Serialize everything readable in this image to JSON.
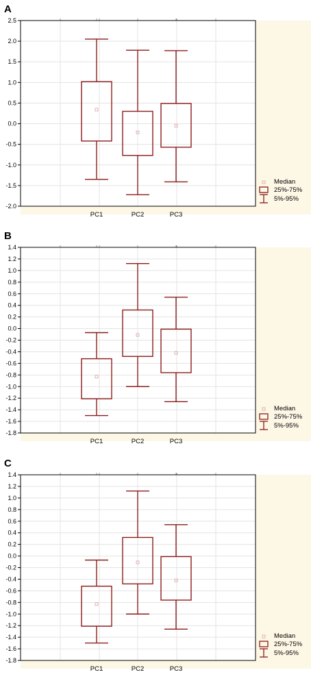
{
  "chart_data": [
    {
      "type": "box",
      "panel_label": "A",
      "categories": [
        "PC1",
        "PC2",
        "PC3"
      ],
      "ylim": [
        -2.0,
        2.5
      ],
      "yticks": [
        -2.0,
        -1.5,
        -1.0,
        -0.5,
        0.0,
        0.5,
        1.0,
        1.5,
        2.0,
        2.5
      ],
      "tick_decimals": 1,
      "grid": true,
      "boxes": [
        {
          "category": "PC1",
          "p5": -1.35,
          "q1": -0.42,
          "median": 0.34,
          "q3": 1.02,
          "p95": 2.05
        },
        {
          "category": "PC2",
          "p5": -1.72,
          "q1": -0.77,
          "median": -0.21,
          "q3": 0.3,
          "p95": 1.78
        },
        {
          "category": "PC3",
          "p5": -1.41,
          "q1": -0.57,
          "median": -0.05,
          "q3": 0.49,
          "p95": 1.77
        }
      ],
      "legend": {
        "median": "Median",
        "box": "25%-75%",
        "whisker": "5%-95%"
      },
      "legend_position": "bottom-right"
    },
    {
      "type": "box",
      "panel_label": "B",
      "categories": [
        "PC1",
        "PC2",
        "PC3"
      ],
      "ylim": [
        -1.8,
        1.4
      ],
      "yticks": [
        -1.8,
        -1.6,
        -1.4,
        -1.2,
        -1.0,
        -0.8,
        -0.6,
        -0.4,
        -0.2,
        0.0,
        0.2,
        0.4,
        0.6,
        0.8,
        1.0,
        1.2,
        1.4
      ],
      "tick_decimals": 1,
      "grid": true,
      "boxes": [
        {
          "category": "PC1",
          "p5": -1.5,
          "q1": -1.21,
          "median": -0.83,
          "q3": -0.52,
          "p95": -0.07
        },
        {
          "category": "PC2",
          "p5": -1.0,
          "q1": -0.48,
          "median": -0.11,
          "q3": 0.32,
          "p95": 1.12
        },
        {
          "category": "PC3",
          "p5": -1.26,
          "q1": -0.76,
          "median": -0.42,
          "q3": -0.01,
          "p95": 0.54
        }
      ],
      "legend": {
        "median": "Median",
        "box": "25%-75%",
        "whisker": "5%-95%"
      },
      "legend_position": "bottom-right"
    },
    {
      "type": "box",
      "panel_label": "C",
      "categories": [
        "PC1",
        "PC2",
        "PC3"
      ],
      "ylim": [
        -1.8,
        1.4
      ],
      "yticks": [
        -1.8,
        -1.6,
        -1.4,
        -1.2,
        -1.0,
        -0.8,
        -0.6,
        -0.4,
        -0.2,
        0.0,
        0.2,
        0.4,
        0.6,
        0.8,
        1.0,
        1.2,
        1.4
      ],
      "tick_decimals": 1,
      "grid": true,
      "boxes": [
        {
          "category": "PC1",
          "p5": -1.5,
          "q1": -1.21,
          "median": -0.83,
          "q3": -0.52,
          "p95": -0.07
        },
        {
          "category": "PC2",
          "p5": -1.0,
          "q1": -0.48,
          "median": -0.11,
          "q3": 0.32,
          "p95": 1.12
        },
        {
          "category": "PC3",
          "p5": -1.26,
          "q1": -0.76,
          "median": -0.42,
          "q3": -0.01,
          "p95": 0.54
        }
      ],
      "legend": {
        "median": "Median",
        "box": "25%-75%",
        "whisker": "5%-95%"
      },
      "legend_position": "bottom-right"
    }
  ],
  "colors": {
    "box_stroke": "#8b1a1a",
    "median_marker": "#d9a0a0",
    "plot_background": "#ffffff",
    "outer_background": "#fdf7e6",
    "grid": "#e3e3e3",
    "axis": "#000000"
  }
}
